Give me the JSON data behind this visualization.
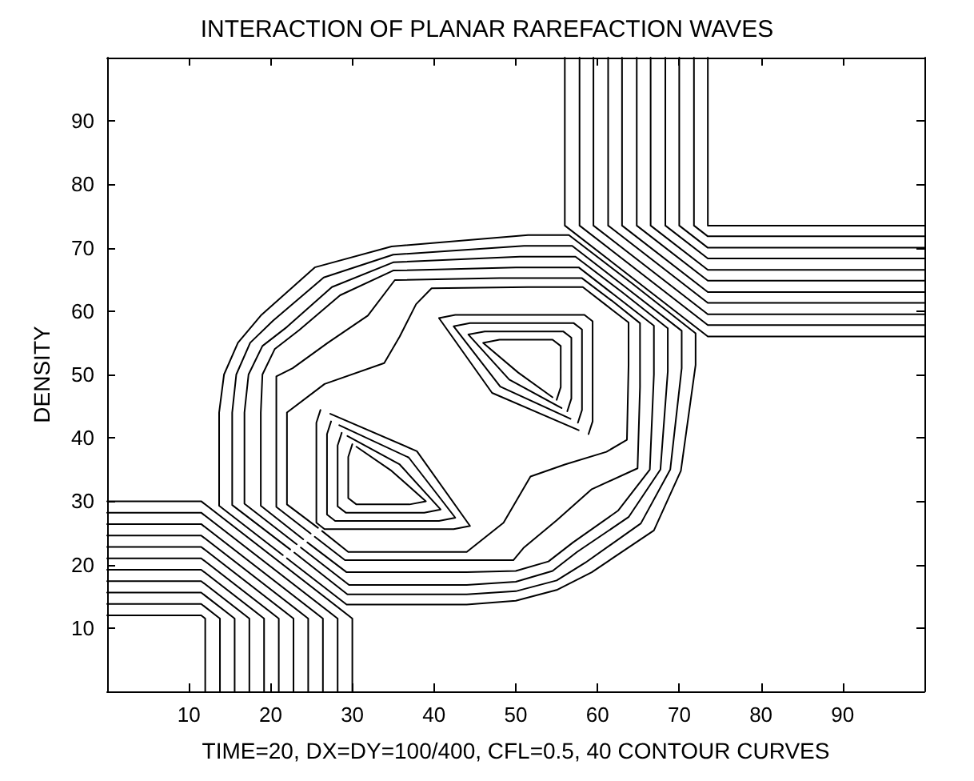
{
  "chart_data": {
    "type": "line",
    "title": "INTERACTION OF PLANAR RAREFACTION WAVES",
    "xlabel": "TIME=20, DX=DY=100/400, CFL=0.5, 40 CONTOUR CURVES",
    "ylabel": "DENSITY",
    "xlim": [
      0,
      100
    ],
    "ylim": [
      0,
      100
    ],
    "xticks": [
      10,
      20,
      30,
      40,
      50,
      60,
      70,
      80,
      90
    ],
    "yticks": [
      10,
      20,
      30,
      40,
      50,
      60,
      70,
      80,
      90
    ],
    "grid": false,
    "marker": "none",
    "line_style": "solid",
    "series": [
      {
        "color": "#000000",
        "x": [
          0,
          11.5,
          12,
          12
        ],
        "values": [
          12,
          12,
          11.5,
          0
        ]
      },
      {
        "color": "#000000",
        "x": [
          0,
          11.5,
          13.8,
          13.8
        ],
        "values": [
          13.8,
          13.8,
          11.5,
          0
        ]
      },
      {
        "color": "#000000",
        "x": [
          0,
          11.5,
          15.6,
          15.6
        ],
        "values": [
          15.6,
          15.6,
          11.5,
          0
        ]
      },
      {
        "color": "#000000",
        "x": [
          0,
          11.5,
          17.4,
          17.4
        ],
        "values": [
          17.4,
          17.4,
          11.5,
          0
        ]
      },
      {
        "color": "#000000",
        "x": [
          0,
          11.5,
          19.2,
          19.2
        ],
        "values": [
          19.2,
          19.2,
          11.5,
          0
        ]
      },
      {
        "color": "#000000",
        "x": [
          0,
          11.5,
          21,
          21
        ],
        "values": [
          21,
          21,
          11.5,
          0
        ]
      },
      {
        "color": "#000000",
        "x": [
          0,
          11.5,
          22.8,
          22.8
        ],
        "values": [
          22.8,
          22.8,
          11.5,
          0
        ]
      },
      {
        "color": "#000000",
        "x": [
          0,
          11.5,
          24.6,
          24.6
        ],
        "values": [
          24.6,
          24.6,
          11.5,
          0
        ]
      },
      {
        "color": "#000000",
        "x": [
          0,
          11.5,
          26.4,
          26.4
        ],
        "values": [
          26.4,
          26.4,
          11.5,
          0
        ]
      },
      {
        "color": "#000000",
        "x": [
          0,
          11.5,
          28.2,
          28.2
        ],
        "values": [
          28.2,
          28.2,
          11.5,
          0
        ]
      },
      {
        "color": "#000000",
        "x": [
          0,
          11.5,
          30,
          30
        ],
        "values": [
          30,
          30,
          11.5,
          0
        ]
      },
      {
        "color": "#000000",
        "x": [
          56,
          56,
          73.5,
          100
        ],
        "values": [
          100,
          73.5,
          56,
          56
        ]
      },
      {
        "color": "#000000",
        "x": [
          57.8,
          57.8,
          73.5,
          100
        ],
        "values": [
          100,
          73.5,
          57.8,
          57.8
        ]
      },
      {
        "color": "#000000",
        "x": [
          59.5,
          59.5,
          73.5,
          100
        ],
        "values": [
          100,
          73.5,
          59.5,
          59.5
        ]
      },
      {
        "color": "#000000",
        "x": [
          61.3,
          61.3,
          73.5,
          100
        ],
        "values": [
          100,
          73.5,
          61.3,
          61.3
        ]
      },
      {
        "color": "#000000",
        "x": [
          63,
          63,
          73.5,
          100
        ],
        "values": [
          100,
          73.5,
          63,
          63
        ]
      },
      {
        "color": "#000000",
        "x": [
          64.8,
          64.8,
          73.5,
          100
        ],
        "values": [
          100,
          73.5,
          64.8,
          64.8
        ]
      },
      {
        "color": "#000000",
        "x": [
          66.5,
          66.5,
          73.5,
          100
        ],
        "values": [
          100,
          73.5,
          66.5,
          66.5
        ]
      },
      {
        "color": "#000000",
        "x": [
          68.3,
          68.3,
          73.5,
          100
        ],
        "values": [
          100,
          73.5,
          68.3,
          68.3
        ]
      },
      {
        "color": "#000000",
        "x": [
          70,
          70,
          73.5,
          100
        ],
        "values": [
          100,
          73.5,
          70,
          70
        ]
      },
      {
        "color": "#000000",
        "x": [
          71.8,
          71.8,
          73.5,
          100
        ],
        "values": [
          100,
          73.5,
          71.8,
          71.8
        ]
      },
      {
        "color": "#000000",
        "x": [
          73.5,
          73.5,
          100
        ],
        "values": [
          100,
          73.5,
          73.5
        ]
      },
      {
        "color": "#000000",
        "x": [
          21.5,
          13.7,
          13.7,
          14.3,
          16,
          18.8,
          25.4,
          34.8,
          51.5,
          56.5,
          64.3,
          72,
          72,
          70.2,
          66.9,
          59.3,
          55,
          50,
          44,
          29.3,
          22
        ],
        "values": [
          21.5,
          29.3,
          44,
          50,
          55,
          59.3,
          66.9,
          70.2,
          72,
          72,
          64.3,
          56.5,
          51.5,
          34.8,
          25.4,
          18.8,
          16,
          14.3,
          13.7,
          13.7,
          21
        ]
      },
      {
        "color": "#000000",
        "x": [
          22.4,
          15.3,
          15.3,
          15.8,
          17.5,
          20.3,
          26.5,
          35,
          51,
          56.9,
          63.6,
          70.3,
          70.3,
          68.9,
          65.3,
          58.5,
          55,
          50,
          44,
          29.4,
          22.9
        ],
        "values": [
          22.4,
          29.4,
          44,
          50,
          55,
          58.5,
          65.3,
          68.9,
          70.3,
          70.3,
          63.6,
          56.9,
          51,
          35,
          26.5,
          20.3,
          17.5,
          15.8,
          15.3,
          15.3,
          21.9
        ]
      },
      {
        "color": "#000000",
        "x": [
          23.2,
          16.8,
          16.8,
          17.3,
          19,
          22,
          27.5,
          35,
          50.5,
          57.3,
          63,
          68.6,
          68.6,
          67.7,
          63.8,
          57.5,
          54.5,
          50,
          44,
          29.6,
          23.7
        ],
        "values": [
          23.2,
          29.6,
          44,
          50,
          54.5,
          57.5,
          63.8,
          67.7,
          68.6,
          68.6,
          63,
          57.3,
          50.5,
          35,
          27.5,
          22,
          19,
          17.3,
          16.8,
          16.8,
          22.7
        ]
      },
      {
        "color": "#000000",
        "x": [
          24,
          18.8,
          18.8,
          19,
          20.5,
          23.5,
          28.5,
          35,
          50,
          57.7,
          62.3,
          66.9,
          66.9,
          66.4,
          62.5,
          57,
          54,
          50,
          44,
          29.3,
          24.5
        ],
        "values": [
          24,
          29.3,
          44,
          50,
          54,
          57,
          62.5,
          66.4,
          66.9,
          66.9,
          62.3,
          57.7,
          50,
          35,
          28.5,
          23.5,
          20.5,
          19,
          18.8,
          18.8,
          23.5
        ]
      },
      {
        "color": "#000000",
        "x": [
          24.9,
          20.7,
          20.7,
          20.7,
          22.7,
          27,
          31.9,
          35.2,
          48,
          58.1,
          61.7,
          65.2,
          65.2,
          64.9,
          59.3,
          55,
          51,
          49.7,
          44,
          29.1,
          25.4
        ],
        "values": [
          24.9,
          29.1,
          44,
          49.7,
          51,
          55,
          59.3,
          64.9,
          65.2,
          65.2,
          61.7,
          58.1,
          48,
          35.2,
          31.9,
          27,
          22.7,
          20.7,
          20.7,
          20.7,
          24.4
        ]
      },
      {
        "color": "#000000",
        "x": [
          25.8,
          22,
          22,
          26.6,
          33.9,
          35.8,
          37.8,
          39.7,
          51.5,
          58.2,
          61,
          63.8,
          63.8,
          63.6,
          61.1,
          56,
          51.8,
          48.5,
          44,
          29.5,
          26.3
        ],
        "values": [
          25.8,
          29.5,
          44,
          48.5,
          51.8,
          56,
          61.1,
          63.6,
          63.8,
          63.8,
          61,
          58.2,
          51.5,
          39.7,
          37.8,
          35.8,
          33.9,
          26.6,
          22,
          22,
          25.3
        ]
      },
      {
        "color": "#000000",
        "x": [
          30,
          29.5,
          29.5,
          30.5,
          37,
          39,
          34.8,
          30.5
        ],
        "values": [
          39,
          37,
          30.5,
          29.5,
          29.5,
          30,
          34.8,
          38.6
        ]
      },
      {
        "color": "#000000",
        "x": [
          28.7,
          28.2,
          28.2,
          29.2,
          38.8,
          40.8,
          35.8,
          29.4
        ],
        "values": [
          40.8,
          38.8,
          29.2,
          28.2,
          28.2,
          28.7,
          35.8,
          40.3
        ]
      },
      {
        "color": "#000000",
        "x": [
          27.4,
          26.9,
          26.9,
          27.9,
          40.6,
          42.6,
          36.9,
          28.4
        ],
        "values": [
          42.6,
          40.6,
          27.9,
          26.9,
          26.9,
          27.4,
          36.9,
          42
        ]
      },
      {
        "color": "#000000",
        "x": [
          26.1,
          25.6,
          25.6,
          26.6,
          42.4,
          44.4,
          37.9,
          27.3
        ],
        "values": [
          44.4,
          42.4,
          26.6,
          25.6,
          25.6,
          26.1,
          37.9,
          43.8
        ]
      },
      {
        "color": "#000000",
        "x": [
          55,
          55.5,
          55.5,
          54.5,
          48,
          46,
          50.3,
          54.5
        ],
        "values": [
          46,
          48,
          54.5,
          55.5,
          55.5,
          55,
          50.3,
          46.4
        ]
      },
      {
        "color": "#000000",
        "x": [
          56.3,
          56.8,
          56.8,
          55.8,
          46.2,
          44.2,
          49.2,
          55.6
        ],
        "values": [
          44.2,
          46.2,
          55.8,
          56.8,
          56.8,
          56.3,
          49.2,
          44.7
        ]
      },
      {
        "color": "#000000",
        "x": [
          57.6,
          58.1,
          58.1,
          57.1,
          44.4,
          42.4,
          48.1,
          56.7
        ],
        "values": [
          42.4,
          44.4,
          57.1,
          58.1,
          58.1,
          57.6,
          48.1,
          43
        ]
      },
      {
        "color": "#000000",
        "x": [
          58.9,
          59.4,
          59.4,
          58.4,
          42.6,
          40.6,
          47.1,
          57.7
        ],
        "values": [
          40.6,
          42.6,
          58.4,
          59.4,
          59.4,
          58.9,
          47.1,
          41.2
        ]
      }
    ]
  }
}
